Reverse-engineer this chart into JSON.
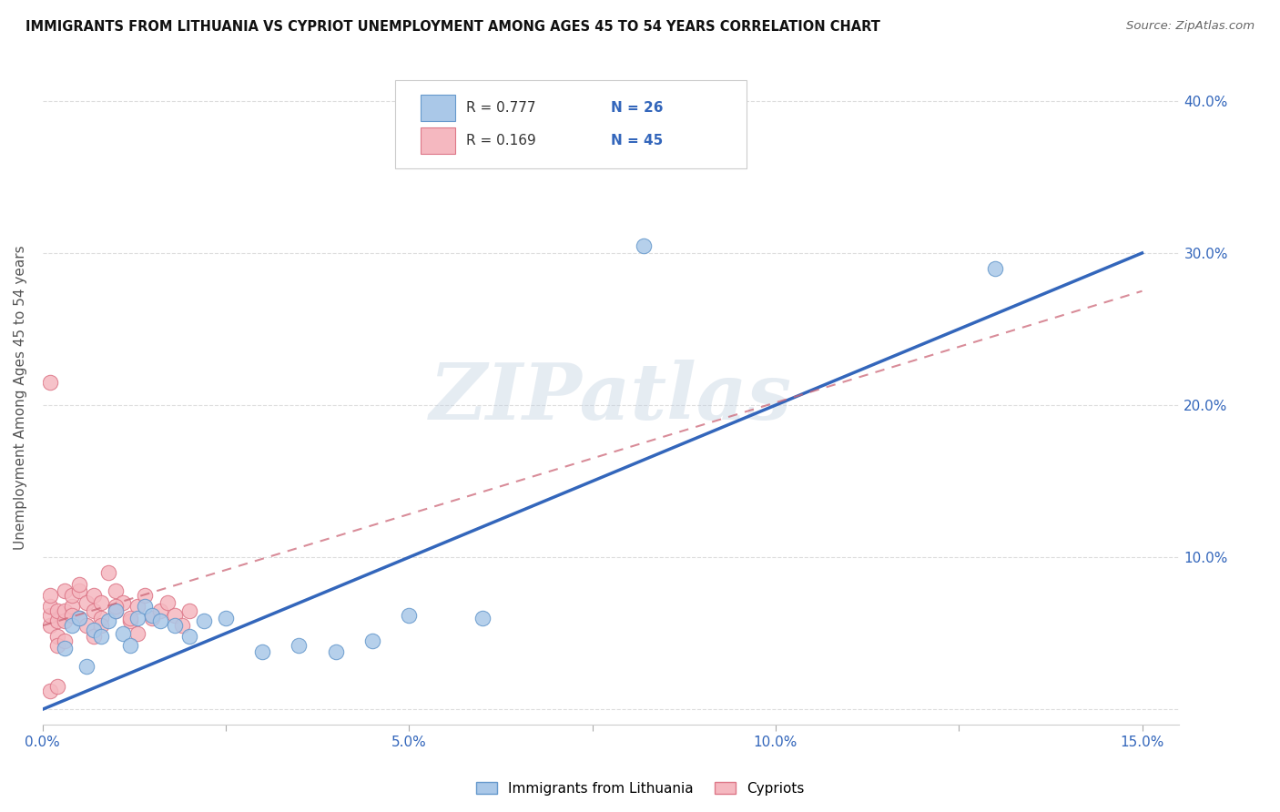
{
  "title": "IMMIGRANTS FROM LITHUANIA VS CYPRIOT UNEMPLOYMENT AMONG AGES 45 TO 54 YEARS CORRELATION CHART",
  "source": "Source: ZipAtlas.com",
  "ylabel": "Unemployment Among Ages 45 to 54 years",
  "watermark_text": "ZIPatlas",
  "xlim": [
    0.0,
    0.155
  ],
  "ylim": [
    -0.01,
    0.42
  ],
  "xticks": [
    0.0,
    0.025,
    0.05,
    0.075,
    0.1,
    0.125,
    0.15
  ],
  "xticklabels": [
    "0.0%",
    "",
    "5.0%",
    "",
    "10.0%",
    "",
    "15.0%"
  ],
  "yticks": [
    0.0,
    0.1,
    0.2,
    0.3,
    0.4
  ],
  "yticklabels": [
    "",
    "10.0%",
    "20.0%",
    "30.0%",
    "40.0%"
  ],
  "blue_R": "0.777",
  "blue_N": "26",
  "pink_R": "0.169",
  "pink_N": "45",
  "blue_fill": "#aac8e8",
  "blue_edge": "#6699cc",
  "pink_fill": "#f5b8c0",
  "pink_edge": "#dd7788",
  "blue_line": "#3366bb",
  "pink_line": "#cc6677",
  "legend1": "Immigrants from Lithuania",
  "legend2": "Cypriots",
  "blue_trend_x0": 0.0,
  "blue_trend_y0": 0.0,
  "blue_trend_x1": 0.15,
  "blue_trend_y1": 0.3,
  "pink_trend_x0": 0.0,
  "pink_trend_y0": 0.055,
  "pink_trend_x1": 0.15,
  "pink_trend_y1": 0.275,
  "blue_x": [
    0.003,
    0.004,
    0.005,
    0.006,
    0.007,
    0.008,
    0.009,
    0.01,
    0.011,
    0.012,
    0.013,
    0.014,
    0.015,
    0.016,
    0.018,
    0.02,
    0.022,
    0.025,
    0.03,
    0.035,
    0.04,
    0.045,
    0.05,
    0.06,
    0.082,
    0.13
  ],
  "blue_y": [
    0.04,
    0.055,
    0.06,
    0.028,
    0.052,
    0.048,
    0.058,
    0.065,
    0.05,
    0.042,
    0.06,
    0.068,
    0.062,
    0.058,
    0.055,
    0.048,
    0.058,
    0.06,
    0.038,
    0.042,
    0.038,
    0.045,
    0.062,
    0.06,
    0.305,
    0.29
  ],
  "pink_x": [
    0.001,
    0.001,
    0.001,
    0.001,
    0.002,
    0.002,
    0.002,
    0.002,
    0.003,
    0.003,
    0.003,
    0.003,
    0.004,
    0.004,
    0.004,
    0.005,
    0.005,
    0.005,
    0.006,
    0.006,
    0.007,
    0.007,
    0.007,
    0.008,
    0.008,
    0.008,
    0.009,
    0.01,
    0.01,
    0.011,
    0.012,
    0.013,
    0.013,
    0.014,
    0.015,
    0.016,
    0.017,
    0.018,
    0.019,
    0.02,
    0.001,
    0.001,
    0.002,
    0.01,
    0.012
  ],
  "pink_y": [
    0.055,
    0.062,
    0.068,
    0.075,
    0.048,
    0.058,
    0.065,
    0.042,
    0.058,
    0.065,
    0.078,
    0.045,
    0.068,
    0.062,
    0.075,
    0.078,
    0.06,
    0.082,
    0.07,
    0.055,
    0.065,
    0.075,
    0.048,
    0.07,
    0.06,
    0.055,
    0.09,
    0.065,
    0.078,
    0.07,
    0.058,
    0.068,
    0.05,
    0.075,
    0.06,
    0.065,
    0.07,
    0.062,
    0.055,
    0.065,
    0.215,
    0.012,
    0.015,
    0.068,
    0.06
  ]
}
